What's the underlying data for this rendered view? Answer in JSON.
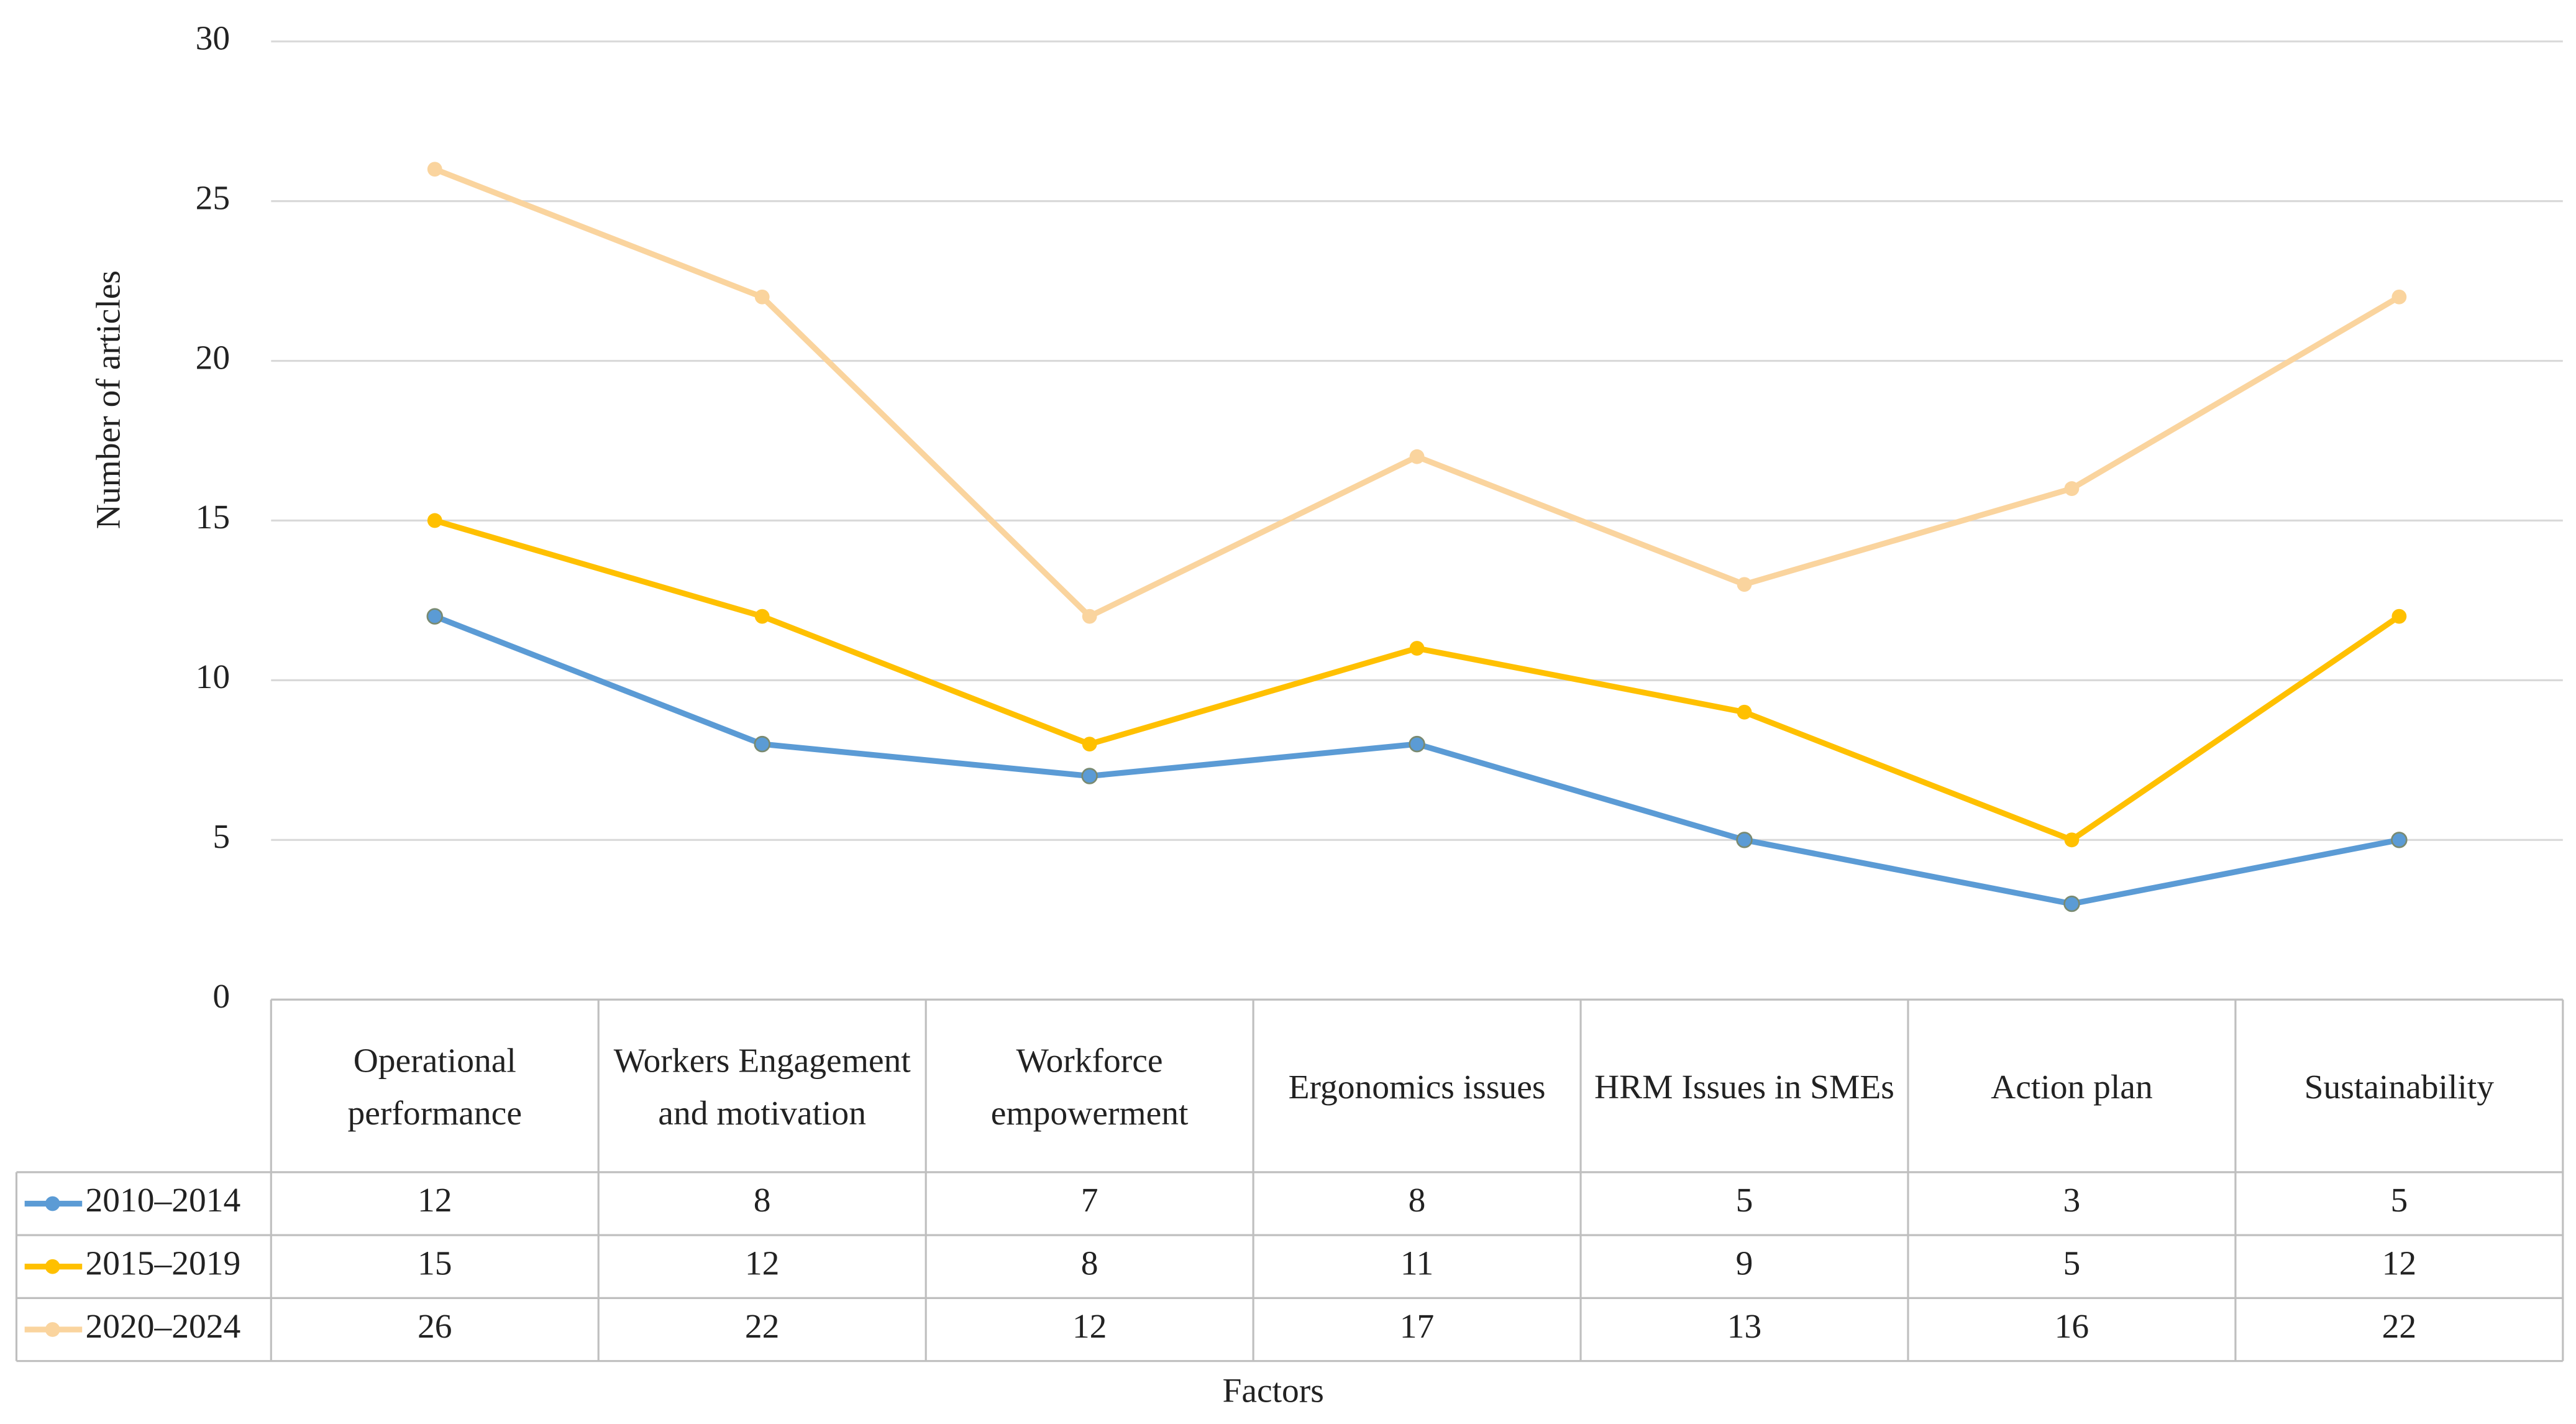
{
  "chart_data": {
    "type": "line",
    "x_label": "Factors",
    "y_label": "Number of articles",
    "categories": [
      "Operational performance",
      "Workers Engagement and motivation",
      "Workforce empowerment",
      "Ergonomics issues",
      "HRM Issues in SMEs",
      "Action plan",
      "Sustainability"
    ],
    "series": [
      {
        "name": "2010–2014",
        "color": "#5b9bd5",
        "values": [
          12,
          8,
          7,
          8,
          5,
          3,
          5
        ]
      },
      {
        "name": "2015–2019",
        "color": "#ffc000",
        "values": [
          15,
          12,
          8,
          11,
          9,
          5,
          12
        ]
      },
      {
        "name": "2020–2024",
        "color": "#fad49e",
        "values": [
          26,
          22,
          12,
          17,
          13,
          16,
          22
        ]
      }
    ],
    "ylim": [
      0,
      30
    ],
    "yticks": [
      0,
      5,
      10,
      15,
      20,
      25,
      30
    ],
    "grid": true,
    "data_table": true
  }
}
